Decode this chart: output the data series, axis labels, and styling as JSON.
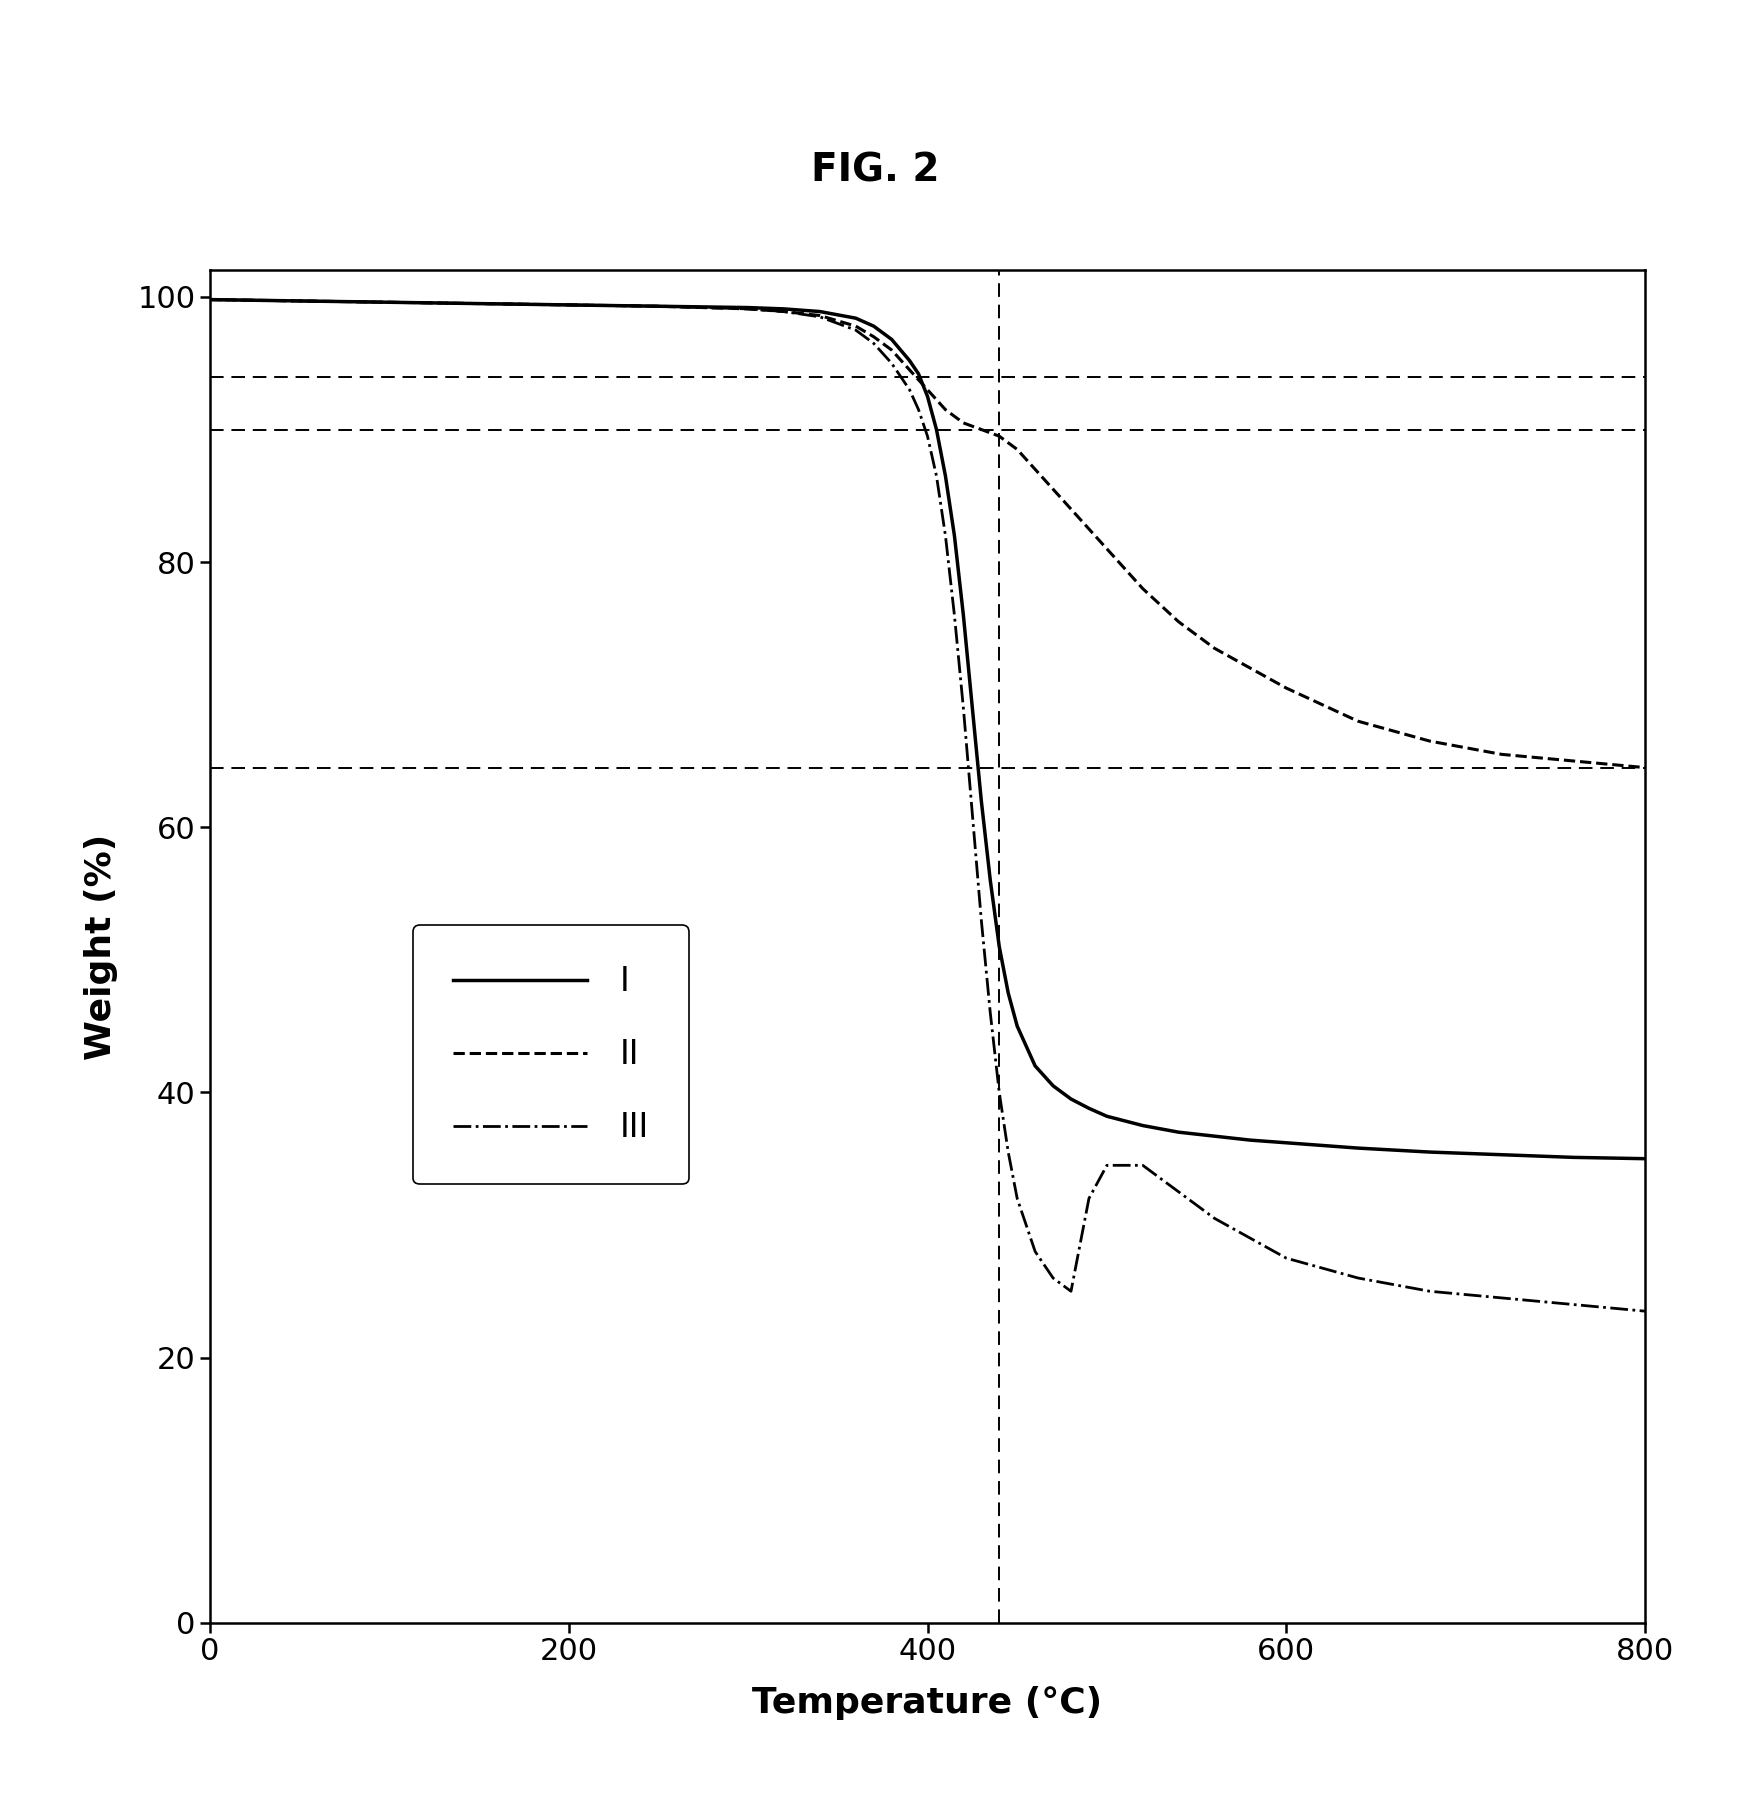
{
  "title": "FIG. 2",
  "xlabel": "Temperature (°C)",
  "ylabel": "Weight (%)",
  "xlim": [
    0,
    800
  ],
  "ylim": [
    0,
    102
  ],
  "xticks": [
    0,
    200,
    400,
    600,
    800
  ],
  "yticks": [
    0,
    20,
    40,
    60,
    80,
    100
  ],
  "hlines": [
    64.5,
    90.0,
    94.0
  ],
  "vline": 440,
  "curve_color": "#000000",
  "legend_labels": [
    "I",
    "II",
    "III"
  ],
  "legend_linestyles": [
    "solid",
    "dashed",
    "dashdot"
  ],
  "curve_I": {
    "x": [
      0,
      50,
      100,
      150,
      200,
      250,
      300,
      320,
      340,
      360,
      370,
      380,
      390,
      395,
      400,
      405,
      410,
      415,
      420,
      425,
      430,
      435,
      440,
      445,
      450,
      460,
      470,
      480,
      490,
      500,
      520,
      540,
      560,
      580,
      600,
      640,
      680,
      720,
      760,
      800
    ],
    "y": [
      99.8,
      99.7,
      99.6,
      99.5,
      99.4,
      99.3,
      99.2,
      99.1,
      98.9,
      98.4,
      97.8,
      96.8,
      95.2,
      94.2,
      92.5,
      90.0,
      86.5,
      82.0,
      76.0,
      69.0,
      62.0,
      56.0,
      51.0,
      47.5,
      45.0,
      42.0,
      40.5,
      39.5,
      38.8,
      38.2,
      37.5,
      37.0,
      36.7,
      36.4,
      36.2,
      35.8,
      35.5,
      35.3,
      35.1,
      35.0
    ]
  },
  "curve_II": {
    "x": [
      0,
      50,
      100,
      150,
      200,
      250,
      300,
      320,
      340,
      360,
      370,
      380,
      390,
      400,
      410,
      420,
      430,
      440,
      450,
      460,
      470,
      480,
      490,
      500,
      520,
      540,
      560,
      580,
      600,
      640,
      680,
      720,
      760,
      800
    ],
    "y": [
      99.8,
      99.7,
      99.6,
      99.5,
      99.4,
      99.3,
      99.1,
      98.9,
      98.6,
      97.8,
      97.0,
      96.0,
      94.5,
      93.0,
      91.5,
      90.5,
      90.0,
      89.5,
      88.5,
      87.0,
      85.5,
      84.0,
      82.5,
      81.0,
      78.0,
      75.5,
      73.5,
      72.0,
      70.5,
      68.0,
      66.5,
      65.5,
      65.0,
      64.5
    ]
  },
  "curve_III": {
    "x": [
      0,
      50,
      100,
      150,
      200,
      250,
      300,
      320,
      340,
      360,
      370,
      380,
      390,
      395,
      400,
      405,
      410,
      415,
      420,
      425,
      430,
      435,
      440,
      445,
      450,
      460,
      470,
      480,
      490,
      500,
      520,
      540,
      560,
      580,
      600,
      640,
      680,
      720,
      760,
      800
    ],
    "y": [
      99.8,
      99.7,
      99.6,
      99.5,
      99.4,
      99.3,
      99.1,
      98.9,
      98.5,
      97.5,
      96.5,
      95.0,
      93.0,
      91.5,
      89.5,
      86.5,
      82.0,
      76.0,
      69.0,
      61.0,
      53.0,
      46.0,
      40.0,
      35.5,
      32.0,
      28.0,
      26.0,
      25.0,
      32.0,
      34.5,
      34.5,
      32.5,
      30.5,
      29.0,
      27.5,
      26.0,
      25.0,
      24.5,
      24.0,
      23.5
    ]
  }
}
